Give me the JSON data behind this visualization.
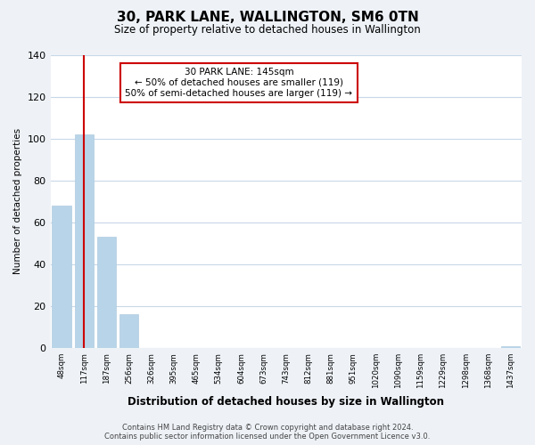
{
  "title": "30, PARK LANE, WALLINGTON, SM6 0TN",
  "subtitle": "Size of property relative to detached houses in Wallington",
  "xlabel": "Distribution of detached houses by size in Wallington",
  "ylabel": "Number of detached properties",
  "bar_values": [
    68,
    102,
    53,
    16,
    0,
    0,
    0,
    0,
    0,
    0,
    0,
    0,
    0,
    0,
    0,
    0,
    0,
    0,
    0,
    0,
    1
  ],
  "x_labels": [
    "48sqm",
    "117sqm",
    "187sqm",
    "256sqm",
    "326sqm",
    "395sqm",
    "465sqm",
    "534sqm",
    "604sqm",
    "673sqm",
    "743sqm",
    "812sqm",
    "881sqm",
    "951sqm",
    "1020sqm",
    "1090sqm",
    "1159sqm",
    "1229sqm",
    "1298sqm",
    "1368sqm",
    "1437sqm"
  ],
  "bar_color": "#b8d4e8",
  "bar_edge_color": "#b0cce0",
  "vline_x": 1,
  "vline_color": "#cc0000",
  "annotation_title": "30 PARK LANE: 145sqm",
  "annotation_line1": "← 50% of detached houses are smaller (119)",
  "annotation_line2": "50% of semi-detached houses are larger (119) →",
  "annotation_box_color": "#ffffff",
  "annotation_box_edge": "#cc0000",
  "ylim": [
    0,
    140
  ],
  "yticks": [
    0,
    20,
    40,
    60,
    80,
    100,
    120,
    140
  ],
  "footer_line1": "Contains HM Land Registry data © Crown copyright and database right 2024.",
  "footer_line2": "Contains public sector information licensed under the Open Government Licence v3.0.",
  "bg_color": "#eef2f7",
  "plot_bg_color": "#ffffff",
  "grid_color": "#c8d8e8"
}
